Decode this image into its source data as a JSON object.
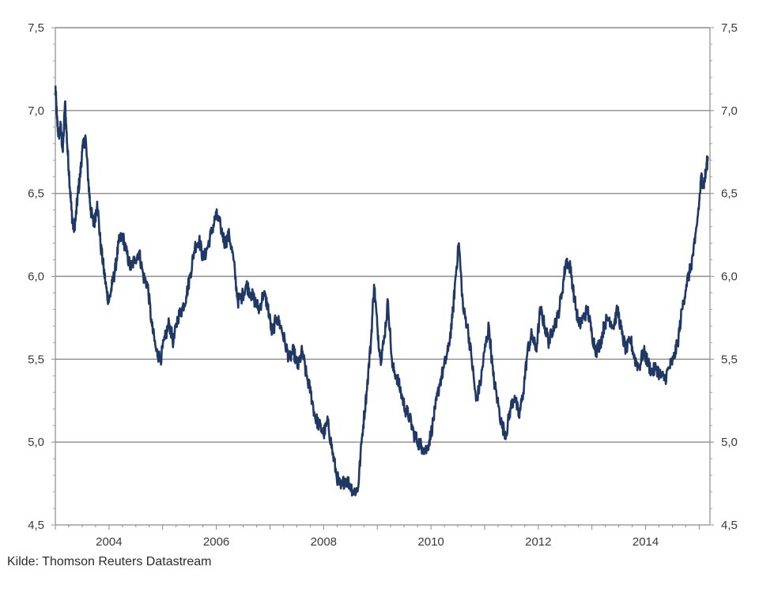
{
  "chart_data": {
    "type": "line",
    "title": "",
    "xlabel": "",
    "ylabel": "",
    "xlim": [
      2003.0,
      2015.2
    ],
    "ylim": [
      4.5,
      7.5
    ],
    "x_ticks": [
      "2004",
      "2006",
      "2008",
      "2010",
      "2012",
      "2014"
    ],
    "x_tick_values": [
      2004,
      2006,
      2008,
      2010,
      2012,
      2014
    ],
    "y_ticks": [
      "4,5",
      "5,0",
      "5,5",
      "6,0",
      "6,5",
      "7,0",
      "7,5"
    ],
    "y_tick_values": [
      4.5,
      5.0,
      5.5,
      6.0,
      6.5,
      7.0,
      7.5
    ],
    "grid": "horizontal",
    "series_color": "#1f3864",
    "series": [
      {
        "x": [
          2003.0,
          2003.03,
          2003.06,
          2003.1,
          2003.14,
          2003.18,
          2003.22,
          2003.26,
          2003.3,
          2003.34,
          2003.38,
          2003.42,
          2003.46,
          2003.5,
          2003.56,
          2003.62,
          2003.66,
          2003.72,
          2003.78,
          2003.84,
          2003.9,
          2003.96,
          2004.0,
          2004.06,
          2004.12,
          2004.18,
          2004.25,
          2004.32,
          2004.4,
          2004.48,
          2004.56,
          2004.64,
          2004.72,
          2004.8,
          2004.88,
          2004.96,
          2005.04,
          2005.12,
          2005.2,
          2005.28,
          2005.36,
          2005.44,
          2005.52,
          2005.6,
          2005.68,
          2005.76,
          2005.84,
          2005.92,
          2006.0,
          2006.08,
          2006.16,
          2006.24,
          2006.32,
          2006.4,
          2006.48,
          2006.56,
          2006.64,
          2006.72,
          2006.8,
          2006.88,
          2006.96,
          2007.04,
          2007.12,
          2007.2,
          2007.28,
          2007.36,
          2007.44,
          2007.52,
          2007.6,
          2007.68,
          2007.76,
          2007.84,
          2007.92,
          2008.0,
          2008.08,
          2008.16,
          2008.24,
          2008.32,
          2008.4,
          2008.48,
          2008.56,
          2008.64,
          2008.72,
          2008.8,
          2008.88,
          2008.94,
          2009.0,
          2009.06,
          2009.12,
          2009.2,
          2009.28,
          2009.36,
          2009.44,
          2009.52,
          2009.6,
          2009.68,
          2009.76,
          2009.84,
          2009.92,
          2010.0,
          2010.08,
          2010.16,
          2010.24,
          2010.32,
          2010.4,
          2010.46,
          2010.52,
          2010.6,
          2010.68,
          2010.76,
          2010.84,
          2010.92,
          2011.0,
          2011.08,
          2011.16,
          2011.24,
          2011.32,
          2011.4,
          2011.48,
          2011.56,
          2011.64,
          2011.72,
          2011.8,
          2011.88,
          2011.96,
          2012.04,
          2012.12,
          2012.2,
          2012.28,
          2012.36,
          2012.44,
          2012.52,
          2012.6,
          2012.68,
          2012.76,
          2012.84,
          2012.92,
          2013.0,
          2013.08,
          2013.16,
          2013.24,
          2013.32,
          2013.4,
          2013.48,
          2013.56,
          2013.64,
          2013.72,
          2013.8,
          2013.88,
          2013.96,
          2014.04,
          2014.12,
          2014.2,
          2014.28,
          2014.36,
          2014.44,
          2014.52,
          2014.6,
          2014.68,
          2014.76,
          2014.84,
          2014.92,
          2015.0,
          2015.04,
          2015.08,
          2015.12,
          2015.16
        ],
        "y": [
          7.15,
          6.95,
          6.85,
          6.9,
          6.75,
          7.05,
          6.8,
          6.6,
          6.4,
          6.28,
          6.35,
          6.5,
          6.6,
          6.75,
          6.85,
          6.55,
          6.4,
          6.3,
          6.45,
          6.2,
          6.05,
          5.9,
          5.85,
          5.95,
          6.05,
          6.2,
          6.25,
          6.15,
          6.05,
          6.1,
          6.15,
          6.0,
          5.95,
          5.7,
          5.55,
          5.5,
          5.62,
          5.72,
          5.6,
          5.75,
          5.8,
          5.88,
          6.02,
          6.18,
          6.22,
          6.1,
          6.18,
          6.28,
          6.37,
          6.3,
          6.2,
          6.25,
          6.1,
          5.85,
          5.88,
          5.95,
          5.9,
          5.85,
          5.8,
          5.9,
          5.82,
          5.65,
          5.75,
          5.7,
          5.6,
          5.5,
          5.55,
          5.45,
          5.55,
          5.4,
          5.3,
          5.15,
          5.1,
          5.05,
          5.12,
          4.95,
          4.8,
          4.72,
          4.78,
          4.75,
          4.7,
          4.72,
          5.05,
          5.3,
          5.6,
          5.95,
          5.7,
          5.5,
          5.6,
          5.85,
          5.45,
          5.4,
          5.3,
          5.2,
          5.15,
          5.05,
          5.0,
          4.97,
          4.95,
          5.05,
          5.2,
          5.35,
          5.45,
          5.55,
          5.75,
          6.0,
          6.2,
          5.8,
          5.7,
          5.5,
          5.25,
          5.35,
          5.55,
          5.7,
          5.4,
          5.25,
          5.1,
          5.05,
          5.2,
          5.28,
          5.15,
          5.3,
          5.55,
          5.65,
          5.55,
          5.8,
          5.7,
          5.6,
          5.7,
          5.75,
          5.9,
          6.1,
          6.05,
          5.85,
          5.7,
          5.75,
          5.8,
          5.65,
          5.55,
          5.6,
          5.72,
          5.75,
          5.7,
          5.8,
          5.65,
          5.55,
          5.62,
          5.5,
          5.45,
          5.55,
          5.48,
          5.42,
          5.45,
          5.4,
          5.38,
          5.45,
          5.5,
          5.6,
          5.8,
          5.95,
          6.05,
          6.2,
          6.45,
          6.6,
          6.55,
          6.62,
          6.72
        ]
      }
    ]
  },
  "source": "Kilde: Thomson Reuters Datastream"
}
